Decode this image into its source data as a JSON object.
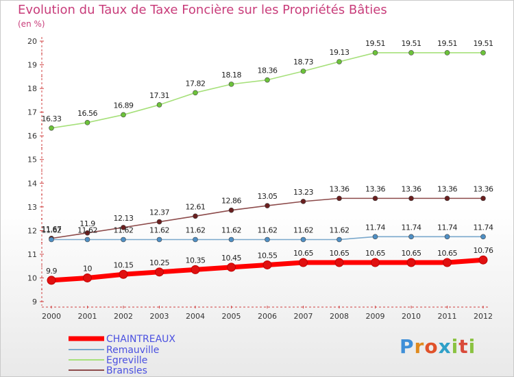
{
  "title": "Evolution du Taux de Taxe Foncière sur les Propriétés Bâties",
  "unit": "(en %)",
  "logo": {
    "letters": [
      "P",
      "r",
      "o",
      "x",
      "i",
      "t",
      "i"
    ],
    "colors": [
      "#3f8fd8",
      "#e08a1e",
      "#e0522a",
      "#2fa0c8",
      "#8ac240",
      "#d94a3a",
      "#8ac240"
    ]
  },
  "chart_data": {
    "type": "line",
    "title": "Evolution du Taux de Taxe Foncière sur les Propriétés Bâties",
    "ylabel": "(en %)",
    "xlabel": "",
    "x": [
      "2000",
      "2001",
      "2002",
      "2003",
      "2004",
      "2005",
      "2006",
      "2007",
      "2008",
      "2009",
      "2010",
      "2011",
      "2012"
    ],
    "ylim": [
      9,
      20
    ],
    "yticks": [
      "9",
      "10",
      "11",
      "12",
      "13",
      "14",
      "15",
      "16",
      "17",
      "18",
      "19",
      "20"
    ],
    "grid": false,
    "legend_position": "bottom-left",
    "series": [
      {
        "name": "CHAINTREAUX",
        "color": "#ff0000",
        "point_color": "#e01010",
        "values": [
          9.9,
          10,
          10.15,
          10.25,
          10.35,
          10.45,
          10.55,
          10.65,
          10.65,
          10.65,
          10.65,
          10.65,
          10.76
        ],
        "labels": [
          "9.9",
          "10",
          "10.15",
          "10.25",
          "10.35",
          "10.45",
          "10.55",
          "10.65",
          "10.65",
          "10.65",
          "10.65",
          "10.65",
          "10.76"
        ]
      },
      {
        "name": "Remauville",
        "color": "#7aa8cc",
        "point_color": "#4f8fc4",
        "values": [
          11.62,
          11.62,
          11.62,
          11.62,
          11.62,
          11.62,
          11.62,
          11.62,
          11.62,
          11.74,
          11.74,
          11.74,
          11.74
        ],
        "labels": [
          "11.62",
          "11.62",
          "11.62",
          "11.62",
          "11.62",
          "11.62",
          "11.62",
          "11.62",
          "11.62",
          "11.74",
          "11.74",
          "11.74",
          "11.74"
        ]
      },
      {
        "name": "Egreville",
        "color": "#a6e07a",
        "point_color": "#6cc23a",
        "values": [
          16.33,
          16.56,
          16.89,
          17.31,
          17.82,
          18.18,
          18.36,
          18.73,
          19.13,
          19.51,
          19.51,
          19.51,
          19.51
        ],
        "labels": [
          "16.33",
          "16.56",
          "16.89",
          "17.31",
          "17.82",
          "18.18",
          "18.36",
          "18.73",
          "19.13",
          "19.51",
          "19.51",
          "19.51",
          "19.51"
        ]
      },
      {
        "name": "Bransles",
        "color": "#8c4a4a",
        "point_color": "#6a1f1f",
        "values": [
          11.67,
          11.9,
          12.13,
          12.37,
          12.61,
          12.86,
          13.05,
          13.23,
          13.36,
          13.36,
          13.36,
          13.36,
          13.36
        ],
        "labels": [
          "11.67",
          "11.9",
          "12.13",
          "12.37",
          "12.61",
          "12.86",
          "13.05",
          "13.23",
          "13.36",
          "13.36",
          "13.36",
          "13.36",
          "13.36"
        ]
      }
    ]
  }
}
